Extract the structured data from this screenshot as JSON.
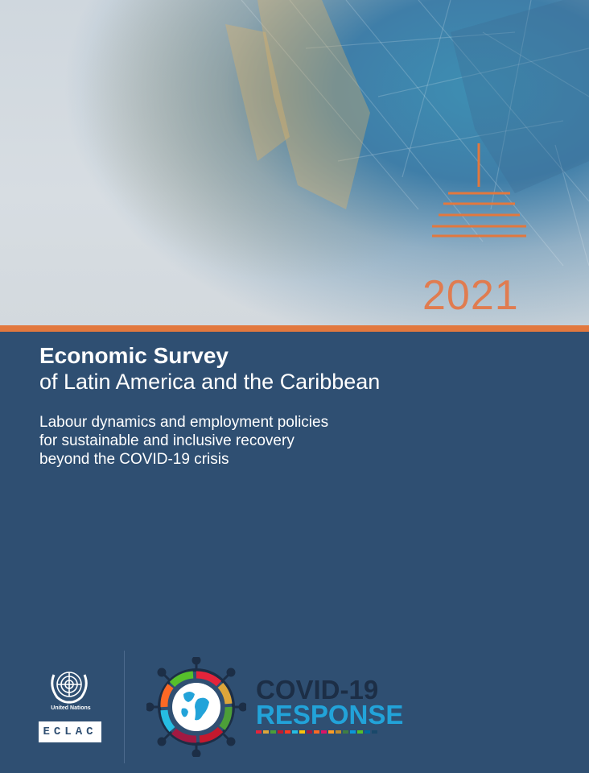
{
  "cover": {
    "year": "2021",
    "title_main": "Economic Survey",
    "title_sub": "of Latin America and the Caribbean",
    "subtitle_lines": [
      "Labour dynamics and employment policies",
      "for sustainable and inclusive recovery",
      "beyond the COVID-19 crisis"
    ]
  },
  "logos": {
    "un_name": "United Nations",
    "eclac": "ECLAC",
    "covid_line1": "COVID-19",
    "covid_line2": "RESPONSE"
  },
  "colors": {
    "panel_blue": "#2f4f72",
    "accent_orange": "#e2783e",
    "year_orange": "#e07c50",
    "covid_blue": "#22a3d9",
    "covid_dark": "#1c2e46"
  },
  "icons": [
    "un-emblem-icon",
    "covid-globe-icon",
    "eclac-emblem-icon"
  ]
}
